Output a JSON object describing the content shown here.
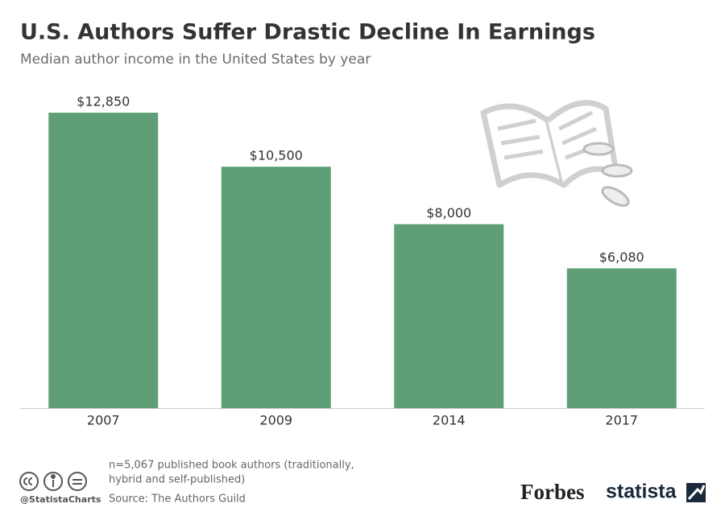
{
  "chart_data": {
    "type": "bar",
    "title": "U.S. Authors Suffer Drastic Decline In Earnings",
    "subtitle": "Median author income in the United States by year",
    "categories": [
      "2007",
      "2009",
      "2014",
      "2017"
    ],
    "values": [
      12850,
      10500,
      8000,
      6080
    ],
    "value_labels": [
      "$12,850",
      "$10,500",
      "$8,000",
      "$6,080"
    ],
    "color": "#5e9f78",
    "note": [
      "n=5,067 published book authors (traditionally,",
      "hybrid and self-published)"
    ],
    "source": "Source: The Authors Guild",
    "credit": "@StatistaCharts",
    "brands": [
      "Forbes",
      "statista"
    ]
  }
}
